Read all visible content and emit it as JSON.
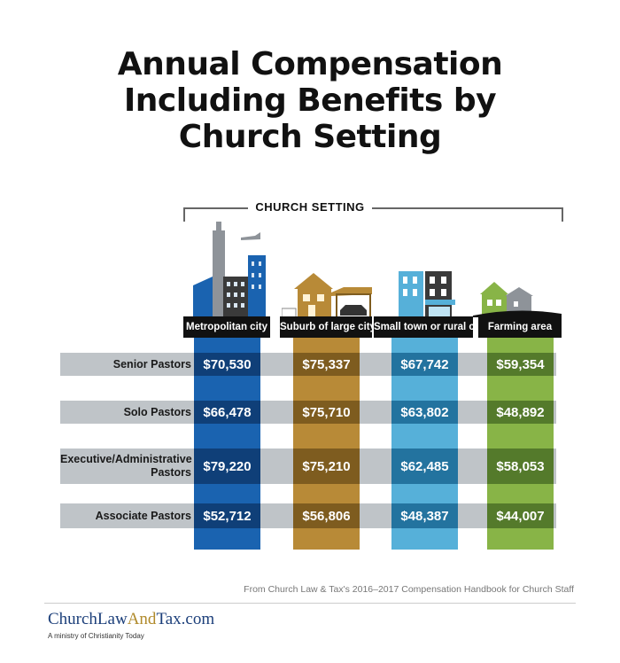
{
  "title_lines": [
    "Annual Compensation",
    "Including Benefits by",
    "Church Setting"
  ],
  "setting_label": "CHURCH SETTING",
  "source_text": "From Church Law & Tax's 2016–2017 Compensation Handbook for Church Staff",
  "logo": {
    "part1": "ChurchLaw",
    "part2": "And",
    "part3": "Tax.com",
    "tagline": "A ministry of Christianity Today"
  },
  "colors": {
    "metro": "#1a63b0",
    "metro_dark": "#0f3f78",
    "suburb": "#b88a37",
    "suburb_dark": "#7e5c1f",
    "town": "#56b0d9",
    "town_dark": "#23739f",
    "farm": "#88b447",
    "farm_dark": "#547a2b",
    "band": "#bfc4c8"
  },
  "chart_data": {
    "type": "table",
    "title": "Annual Compensation Including Benefits by Church Setting",
    "column_group_label": "CHURCH SETTING",
    "columns": [
      "Metropolitan city",
      "Suburb of large city",
      "Small town or rural city",
      "Farming area"
    ],
    "rows": [
      "Senior Pastors",
      "Solo Pastors",
      "Executive/Administrative Pastors",
      "Associate Pastors"
    ],
    "row_label_lines": [
      [
        "Senior Pastors"
      ],
      [
        "Solo Pastors"
      ],
      [
        "Executive/Administrative",
        "Pastors"
      ],
      [
        "Associate Pastors"
      ]
    ],
    "values": [
      [
        70530,
        75337,
        67742,
        59354
      ],
      [
        66478,
        75710,
        63802,
        48892
      ],
      [
        79220,
        75210,
        62485,
        58053
      ],
      [
        52712,
        56806,
        48387,
        44007
      ]
    ],
    "labels": [
      [
        "$70,530",
        "$75,337",
        "$67,742",
        "$59,354"
      ],
      [
        "$66,478",
        "$75,710",
        "$63,802",
        "$48,892"
      ],
      [
        "$79,220",
        "$75,210",
        "$62,485",
        "$58,053"
      ],
      [
        "$52,712",
        "$56,806",
        "$48,387",
        "$44,007"
      ]
    ]
  }
}
